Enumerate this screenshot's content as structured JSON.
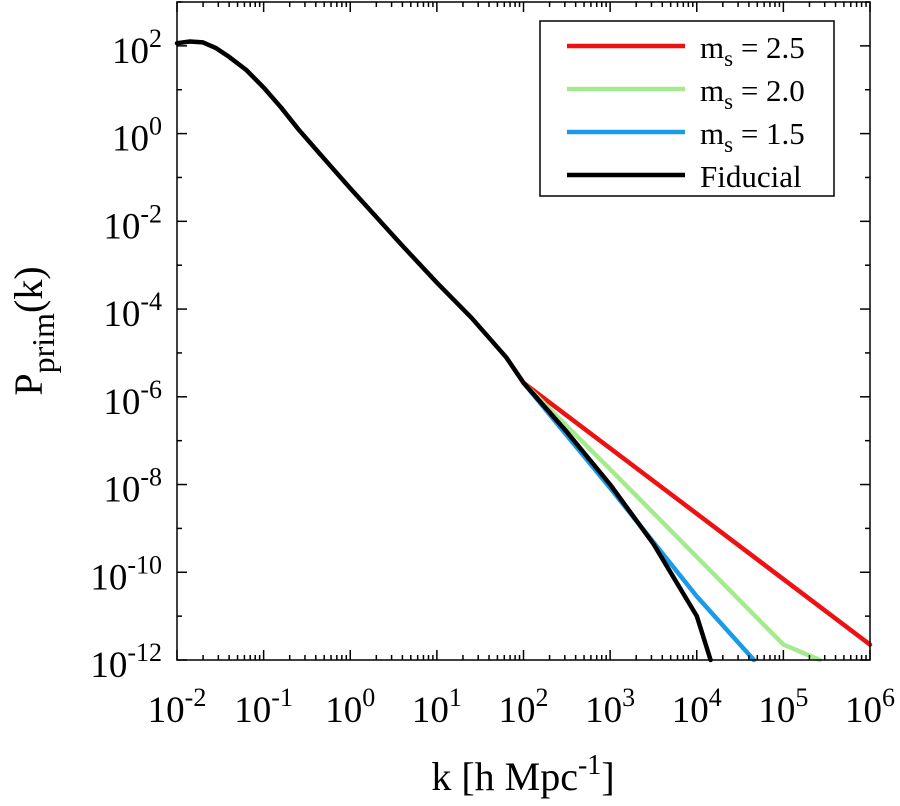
{
  "chart_data": {
    "type": "line",
    "xscale": "log",
    "yscale": "log",
    "xlim_log10": [
      -2,
      6
    ],
    "ylim_log10": [
      -12,
      3
    ],
    "x_ticks": [
      {
        "base": "10",
        "exp": "-2"
      },
      {
        "base": "10",
        "exp": "-1"
      },
      {
        "base": "10",
        "exp": "0"
      },
      {
        "base": "10",
        "exp": "1"
      },
      {
        "base": "10",
        "exp": "2"
      },
      {
        "base": "10",
        "exp": "3"
      },
      {
        "base": "10",
        "exp": "4"
      },
      {
        "base": "10",
        "exp": "5"
      },
      {
        "base": "10",
        "exp": "6"
      }
    ],
    "y_ticks": [
      {
        "base": "10",
        "exp": "-12"
      },
      {
        "base": "10",
        "exp": "-10"
      },
      {
        "base": "10",
        "exp": "-8"
      },
      {
        "base": "10",
        "exp": "-6"
      },
      {
        "base": "10",
        "exp": "-4"
      },
      {
        "base": "10",
        "exp": "-2"
      },
      {
        "base": "10",
        "exp": "0"
      },
      {
        "base": "10",
        "exp": "2"
      }
    ],
    "xlabel": {
      "main": "k [h Mpc",
      "sup": "-1",
      "close": "]"
    },
    "ylabel": {
      "main": "P",
      "sub": "prim",
      "rest": "(k)"
    },
    "legend_position": "top-right",
    "series": [
      {
        "name": "m_s = 2.5",
        "label": {
          "main": "m",
          "sub": "s",
          "rest": " = 2.5"
        },
        "color": "#ee1111",
        "points_log10": [
          [
            2.0,
            -5.68
          ],
          [
            6.0,
            -11.65
          ]
        ]
      },
      {
        "name": "m_s = 2.0",
        "label": {
          "main": "m",
          "sub": "s",
          "rest": " = 2.0"
        },
        "color": "#a6ea8e",
        "points_log10": [
          [
            2.0,
            -5.68
          ],
          [
            3.0,
            -7.65
          ],
          [
            4.0,
            -9.65
          ],
          [
            5.0,
            -11.65
          ],
          [
            5.42,
            -12.0
          ]
        ]
      },
      {
        "name": "m_s = 1.5",
        "label": {
          "main": "m",
          "sub": "s",
          "rest": " = 1.5"
        },
        "color": "#1a9ae8",
        "points_log10": [
          [
            2.0,
            -5.68
          ],
          [
            3.0,
            -8.08
          ],
          [
            4.0,
            -10.55
          ],
          [
            4.66,
            -12.0
          ]
        ]
      },
      {
        "name": "Fiducial",
        "label": {
          "main": "Fiducial",
          "sub": "",
          "rest": ""
        },
        "color": "#000000",
        "points_log10": [
          [
            -2.0,
            2.06
          ],
          [
            -1.85,
            2.1
          ],
          [
            -1.7,
            2.08
          ],
          [
            -1.55,
            1.95
          ],
          [
            -1.4,
            1.75
          ],
          [
            -1.2,
            1.45
          ],
          [
            -1.0,
            1.05
          ],
          [
            -0.8,
            0.6
          ],
          [
            -0.6,
            0.1
          ],
          [
            -0.4,
            -0.35
          ],
          [
            -0.2,
            -0.8
          ],
          [
            0.0,
            -1.25
          ],
          [
            0.3,
            -1.9
          ],
          [
            0.6,
            -2.55
          ],
          [
            1.0,
            -3.4
          ],
          [
            1.4,
            -4.2
          ],
          [
            1.8,
            -5.1
          ],
          [
            2.0,
            -5.68
          ],
          [
            2.5,
            -6.8
          ],
          [
            3.0,
            -8.0
          ],
          [
            3.5,
            -9.35
          ],
          [
            4.0,
            -11.0
          ],
          [
            4.16,
            -12.0
          ]
        ]
      }
    ]
  }
}
